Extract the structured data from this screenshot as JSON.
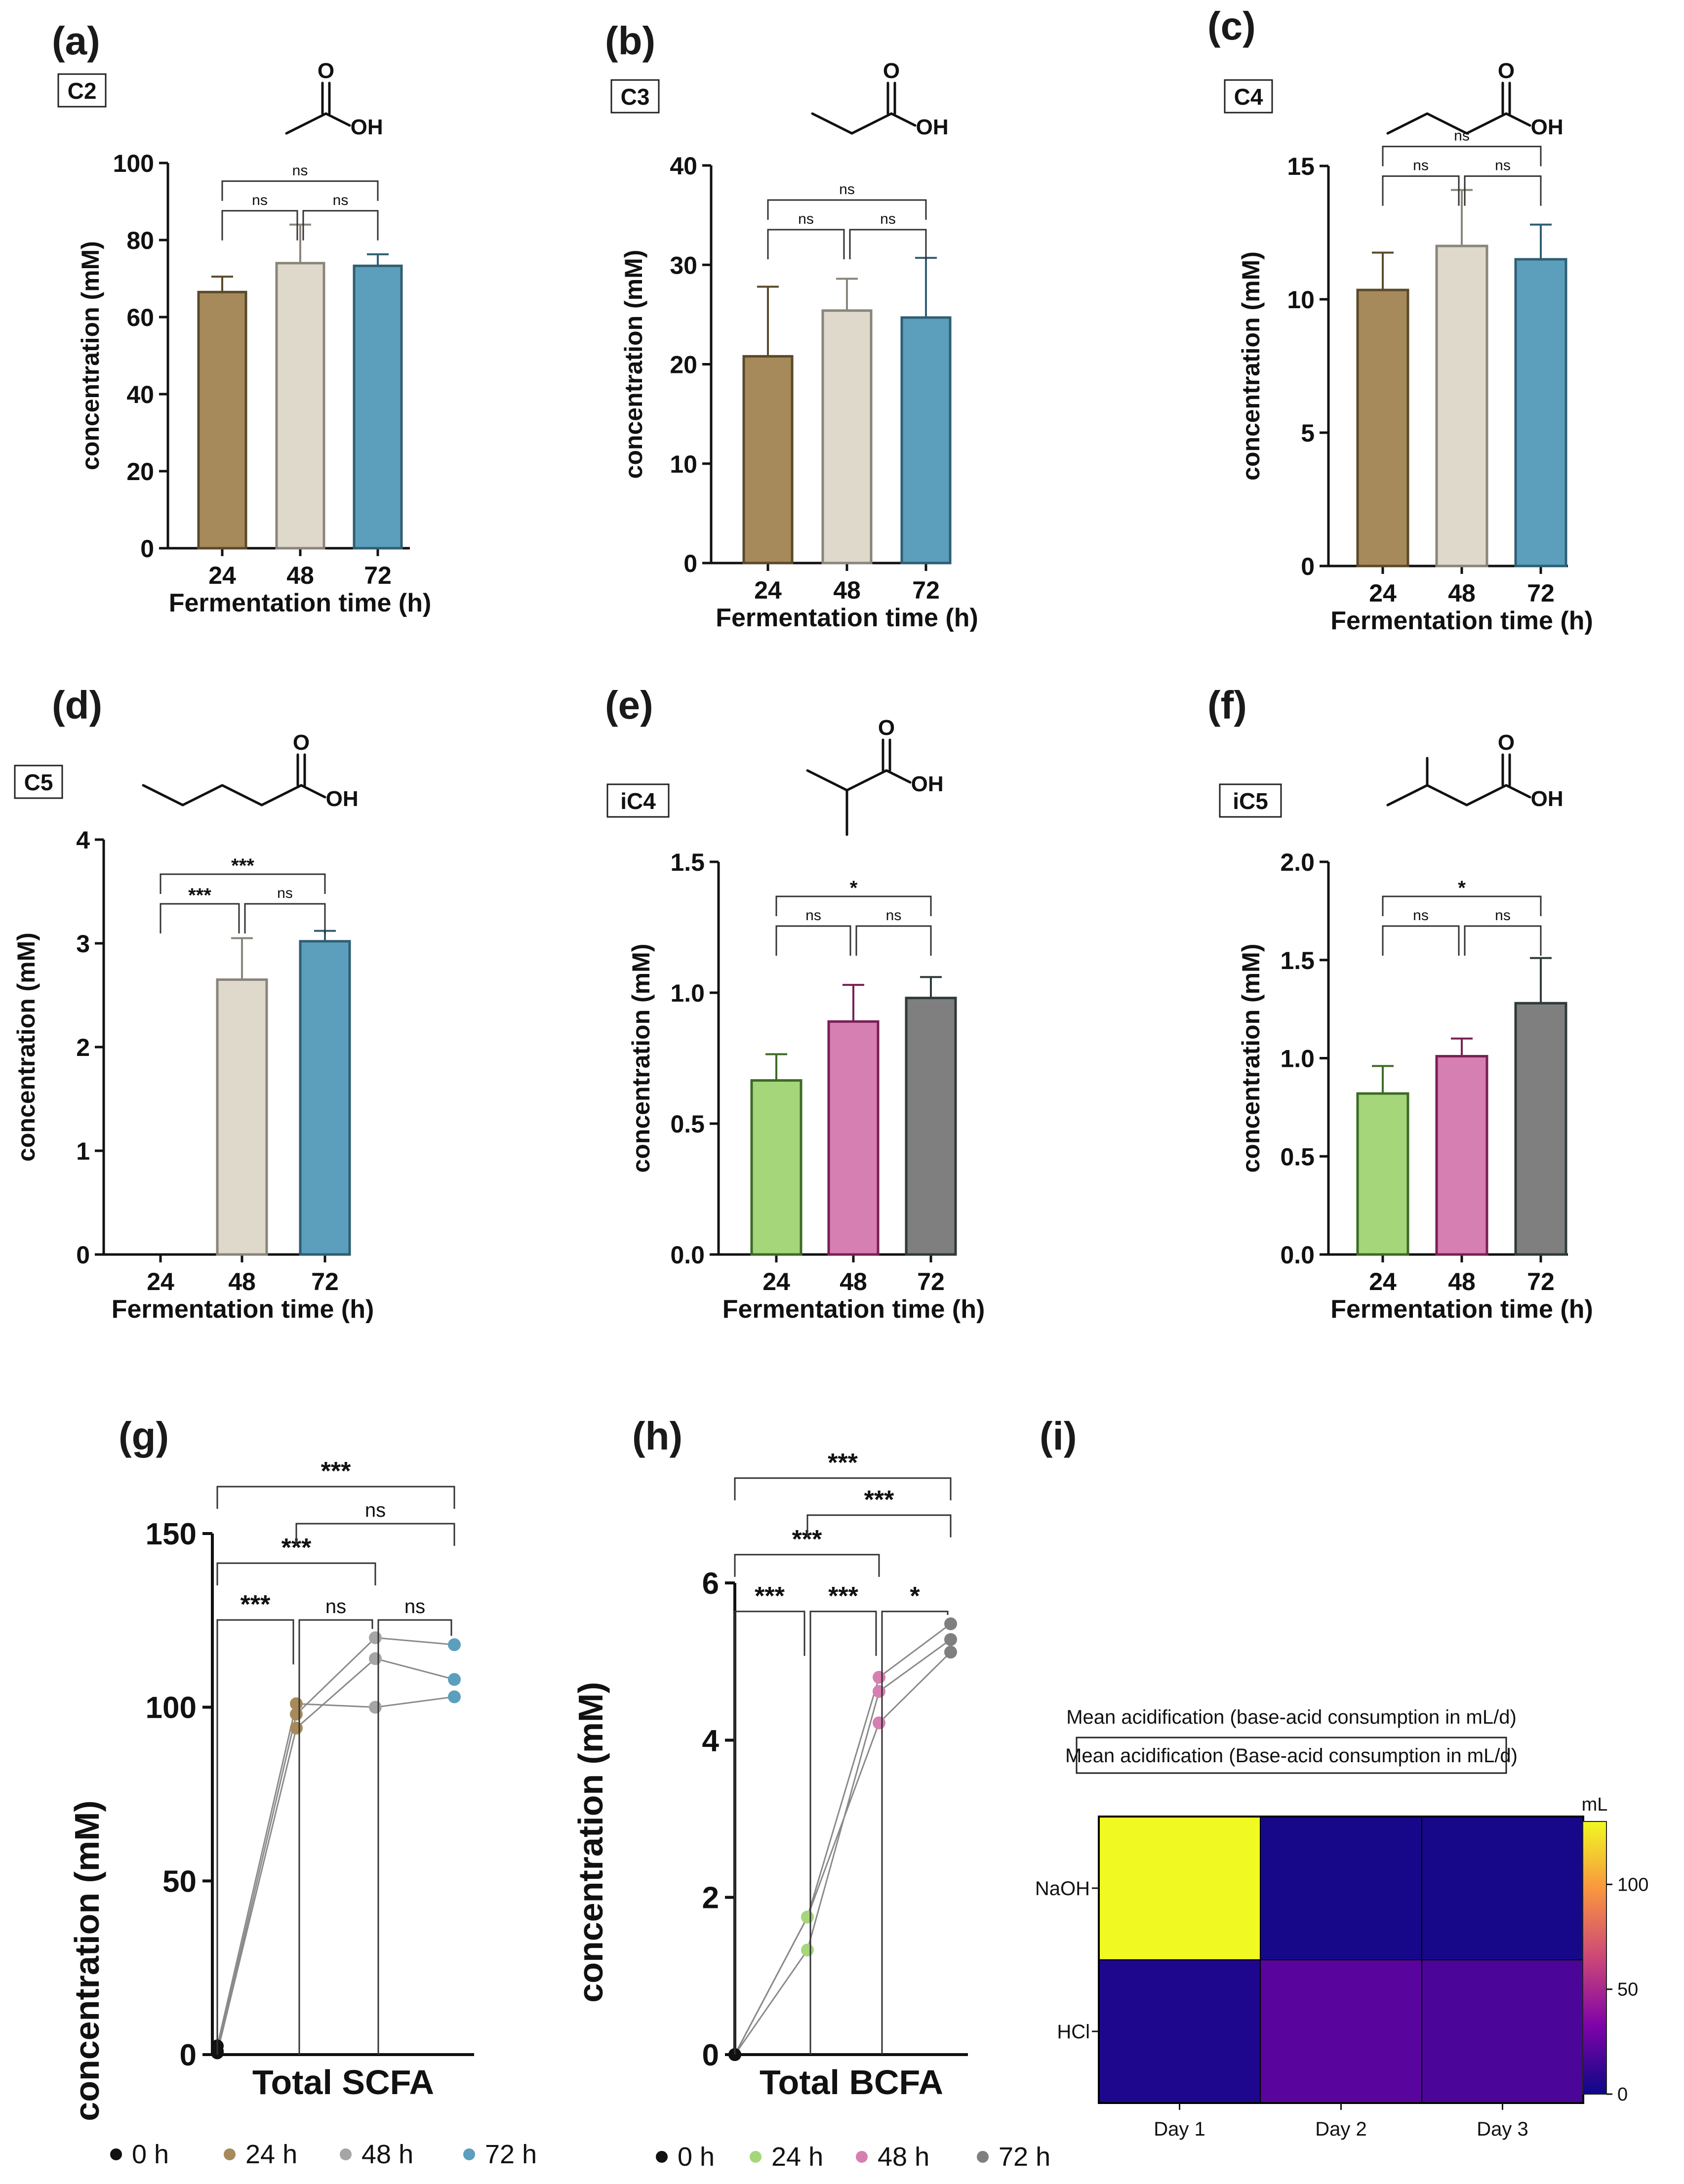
{
  "bar_panels": [
    {
      "panel": "(a)",
      "tag": "C2",
      "ylabel": "concentration (mM)",
      "xlabel": "Fermentation time (h)",
      "ylim": [
        0,
        100
      ],
      "yticks": [
        "0",
        "20",
        "40",
        "60",
        "80",
        "100"
      ],
      "categories": [
        "24",
        "48",
        "72"
      ],
      "values": [
        66.5,
        74,
        73.3
      ],
      "errors": [
        4,
        10,
        3
      ],
      "colors": [
        "#a68a5b",
        "#dfd9cb",
        "#5b9fbc"
      ],
      "edge_colors": [
        "#5a4a2a",
        "#8a857b",
        "#2f5e73"
      ],
      "chem": "acetic",
      "brackets": [
        {
          "from": 0,
          "to": 1,
          "label": "ns",
          "level": 0
        },
        {
          "from": 1,
          "to": 2,
          "label": "ns",
          "level": 0
        },
        {
          "from": 0,
          "to": 2,
          "label": "ns",
          "level": 1
        }
      ]
    },
    {
      "panel": "(b)",
      "tag": "C3",
      "ylabel": "concentration (mM)",
      "xlabel": "Fermentation time (h)",
      "ylim": [
        0,
        40
      ],
      "yticks": [
        "0",
        "10",
        "20",
        "30",
        "40"
      ],
      "categories": [
        "24",
        "48",
        "72"
      ],
      "values": [
        20.8,
        25.4,
        24.7
      ],
      "errors": [
        7,
        3.2,
        6
      ],
      "colors": [
        "#a68a5b",
        "#dfd9cb",
        "#5b9fbc"
      ],
      "edge_colors": [
        "#5a4a2a",
        "#8a857b",
        "#2f5e73"
      ],
      "chem": "propionic",
      "brackets": [
        {
          "from": 0,
          "to": 1,
          "label": "ns",
          "level": 0
        },
        {
          "from": 1,
          "to": 2,
          "label": "ns",
          "level": 0
        },
        {
          "from": 0,
          "to": 2,
          "label": "ns",
          "level": 1
        }
      ]
    },
    {
      "panel": "(c)",
      "tag": "C4",
      "ylabel": "concentration (mM)",
      "xlabel": "Fermentation time (h)",
      "ylim": [
        0,
        15
      ],
      "yticks": [
        "0",
        "5",
        "10",
        "15"
      ],
      "categories": [
        "24",
        "48",
        "72"
      ],
      "values": [
        10.35,
        12,
        11.5
      ],
      "errors": [
        1.4,
        2.1,
        1.3
      ],
      "colors": [
        "#a68a5b",
        "#dfd9cb",
        "#5b9fbc"
      ],
      "edge_colors": [
        "#5a4a2a",
        "#8a857b",
        "#2f5e73"
      ],
      "chem": "butyric",
      "brackets": [
        {
          "from": 0,
          "to": 1,
          "label": "ns",
          "level": 0
        },
        {
          "from": 1,
          "to": 2,
          "label": "ns",
          "level": 0
        },
        {
          "from": 0,
          "to": 2,
          "label": "ns",
          "level": 1
        }
      ]
    },
    {
      "panel": "(d)",
      "tag": "C5",
      "ylabel": "concentration (mM)",
      "xlabel": "Fermentation time (h)",
      "ylim": [
        0,
        4
      ],
      "yticks": [
        "0",
        "1",
        "2",
        "3",
        "4"
      ],
      "categories": [
        "24",
        "48",
        "72"
      ],
      "values": [
        0,
        2.65,
        3.02
      ],
      "errors": [
        0,
        0.4,
        0.1
      ],
      "colors": [
        "#a68a5b",
        "#dfd9cb",
        "#5b9fbc"
      ],
      "edge_colors": [
        "#5a4a2a",
        "#8a857b",
        "#2f5e73"
      ],
      "chem": "valeric",
      "brackets": [
        {
          "from": 0,
          "to": 1,
          "label": "***",
          "level": 0
        },
        {
          "from": 1,
          "to": 2,
          "label": "ns",
          "level": 0
        },
        {
          "from": 0,
          "to": 2,
          "label": "***",
          "level": 1
        }
      ]
    },
    {
      "panel": "(e)",
      "tag": "iC4",
      "ylabel": "concentration (mM)",
      "xlabel": "Fermentation time (h)",
      "ylim": [
        0,
        1.5
      ],
      "yticks": [
        "0.0",
        "0.5",
        "1.0",
        "1.5"
      ],
      "categories": [
        "24",
        "48",
        "72"
      ],
      "values": [
        0.665,
        0.89,
        0.98
      ],
      "errors": [
        0.1,
        0.14,
        0.08
      ],
      "colors": [
        "#a5d67a",
        "#d67fb2",
        "#7f7f7f"
      ],
      "edge_colors": [
        "#3d6a25",
        "#7a1f55",
        "#2f3a3a"
      ],
      "chem": "isobutyric",
      "brackets": [
        {
          "from": 0,
          "to": 1,
          "label": "ns",
          "level": 0
        },
        {
          "from": 1,
          "to": 2,
          "label": "ns",
          "level": 0
        },
        {
          "from": 0,
          "to": 2,
          "label": "*",
          "level": 1
        }
      ]
    },
    {
      "panel": "(f)",
      "tag": "iC5",
      "ylabel": "concentration (mM)",
      "xlabel": "Fermentation time (h)",
      "ylim": [
        0,
        2
      ],
      "yticks": [
        "0.0",
        "0.5",
        "1.0",
        "1.5",
        "2.0"
      ],
      "categories": [
        "24",
        "48",
        "72"
      ],
      "values": [
        0.82,
        1.01,
        1.28
      ],
      "errors": [
        0.14,
        0.09,
        0.23
      ],
      "colors": [
        "#a5d67a",
        "#d67fb2",
        "#7f7f7f"
      ],
      "edge_colors": [
        "#3d6a25",
        "#7a1f55",
        "#2f3a3a"
      ],
      "chem": "isovaleric",
      "brackets": [
        {
          "from": 0,
          "to": 1,
          "label": "ns",
          "level": 0
        },
        {
          "from": 1,
          "to": 2,
          "label": "ns",
          "level": 0
        },
        {
          "from": 0,
          "to": 2,
          "label": "*",
          "level": 1
        }
      ]
    }
  ],
  "chem_labels": {
    "oh": "OH",
    "o": "O"
  },
  "chart_data": [
    {
      "type": "line",
      "panel": "(g)",
      "ylabel": "concentration (mM)",
      "xlabel": "Total SCFA",
      "ylim": [
        0,
        150
      ],
      "yticks": [
        "0",
        "50",
        "100",
        "150"
      ],
      "groups": [
        {
          "name": "0 h",
          "color": "#111111",
          "values": [
            0.5,
            2.5,
            1
          ]
        },
        {
          "name": "24 h",
          "color": "#a68a5b",
          "values": [
            94,
            101,
            98
          ]
        },
        {
          "name": "48 h",
          "color": "#a5a5a5",
          "values": [
            114,
            100,
            120
          ]
        },
        {
          "name": "72 h",
          "color": "#5b9fbc",
          "values": [
            108,
            103,
            118
          ]
        }
      ],
      "brackets": [
        {
          "from": 0,
          "to": 1,
          "label": "***",
          "level": 0
        },
        {
          "from": 1,
          "to": 2,
          "label": "ns",
          "level": 0
        },
        {
          "from": 2,
          "to": 3,
          "label": "ns",
          "level": 0
        },
        {
          "from": 0,
          "to": 2,
          "label": "***",
          "level": 1
        },
        {
          "from": 1,
          "to": 3,
          "label": "ns",
          "level": 2
        },
        {
          "from": 0,
          "to": 3,
          "label": "***",
          "level": 3
        }
      ]
    },
    {
      "type": "line",
      "panel": "(h)",
      "ylabel": "concentration (mM)",
      "xlabel": "Total BCFA",
      "ylim": [
        0,
        6
      ],
      "yticks": [
        "0",
        "2",
        "4",
        "6"
      ],
      "groups": [
        {
          "name": "0 h",
          "color": "#111111",
          "values": [
            0,
            0,
            0
          ]
        },
        {
          "name": "24 h",
          "color": "#a5d67a",
          "values": [
            1.75,
            1.33,
            1.75
          ]
        },
        {
          "name": "48 h",
          "color": "#d67fb2",
          "values": [
            4.22,
            4.62,
            4.8
          ]
        },
        {
          "name": "72 h",
          "color": "#7f7f7f",
          "values": [
            5.12,
            5.28,
            5.48
          ]
        }
      ],
      "brackets": [
        {
          "from": 0,
          "to": 1,
          "label": "***",
          "level": 0
        },
        {
          "from": 1,
          "to": 2,
          "label": "***",
          "level": 0
        },
        {
          "from": 2,
          "to": 3,
          "label": "*",
          "level": 0
        },
        {
          "from": 0,
          "to": 2,
          "label": "***",
          "level": 1
        },
        {
          "from": 1,
          "to": 3,
          "label": "***",
          "level": 2
        },
        {
          "from": 0,
          "to": 3,
          "label": "***",
          "level": 3
        }
      ]
    },
    {
      "type": "heatmap",
      "panel": "(i)",
      "title": "Mean acidification (base-acid consumption in mL/d)",
      "subtitle": "Mean acidification (Base-acid consumption in mL/d)",
      "rows": [
        "NaOH",
        "HCl"
      ],
      "cols": [
        "Day 1",
        "Day 2",
        "Day 3"
      ],
      "values": [
        [
          130,
          3,
          3
        ],
        [
          5,
          22,
          18
        ]
      ],
      "colorbar": {
        "label": "mL",
        "range": [
          0,
          130
        ],
        "ticks": [
          "0",
          "50",
          "100"
        ]
      }
    }
  ]
}
